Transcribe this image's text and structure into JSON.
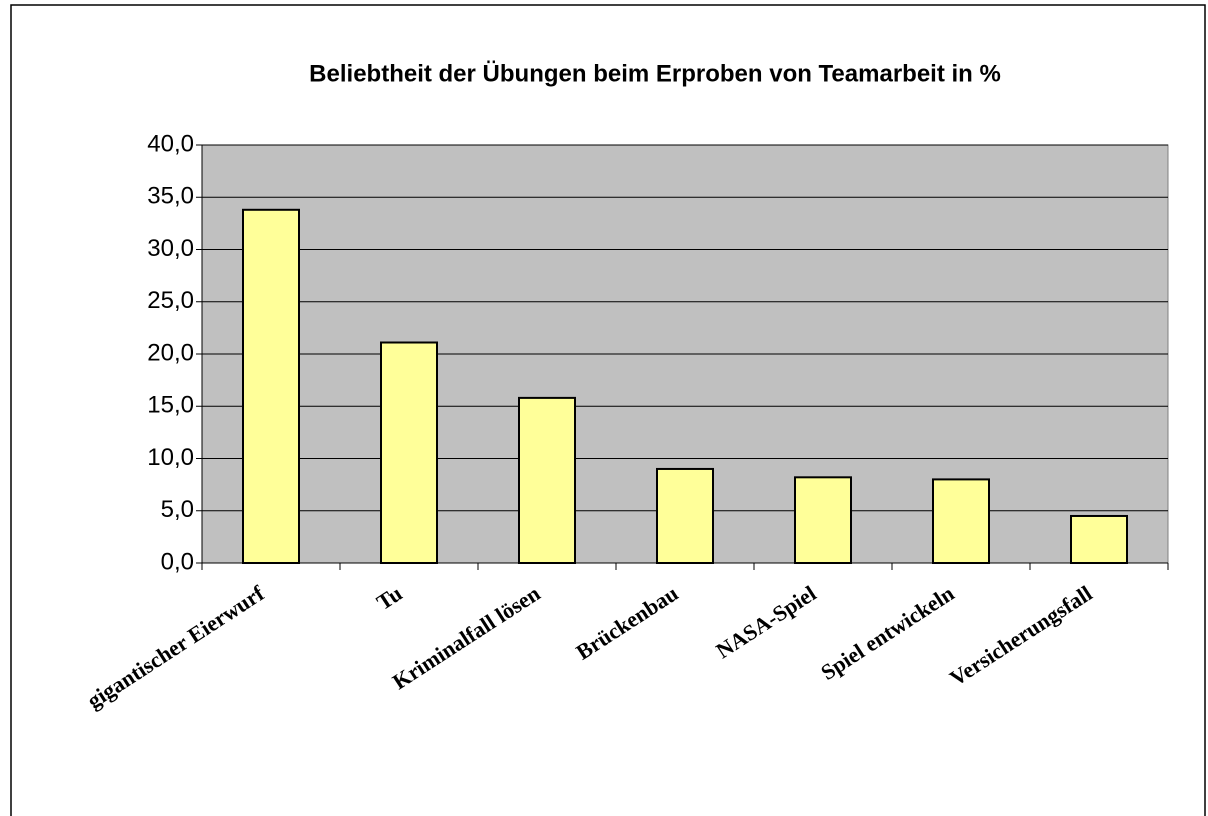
{
  "chart_data": {
    "type": "bar",
    "title": "Beliebtheit der Übungen beim Erproben von Teamarbeit in %",
    "categories": [
      "gigantischer Eierwurf",
      "Tu",
      "Kriminalfall lösen",
      "Brückenbau",
      "NASA-Spiel",
      "Spiel entwickeln",
      "Versicherungsfall"
    ],
    "values": [
      33.8,
      21.1,
      15.8,
      9.0,
      8.2,
      8.0,
      4.5
    ],
    "color": "#ffff99",
    "ylim": [
      0,
      40
    ],
    "yticks": [
      {
        "value": 0,
        "label": "0,0"
      },
      {
        "value": 5,
        "label": "5,0"
      },
      {
        "value": 10,
        "label": "10,0"
      },
      {
        "value": 15,
        "label": "15,0"
      },
      {
        "value": 20,
        "label": "20,0"
      },
      {
        "value": 25,
        "label": "25,0"
      },
      {
        "value": 30,
        "label": "30,0"
      },
      {
        "value": 35,
        "label": "35,0"
      },
      {
        "value": 40,
        "label": "40,0"
      }
    ],
    "grid": true
  }
}
